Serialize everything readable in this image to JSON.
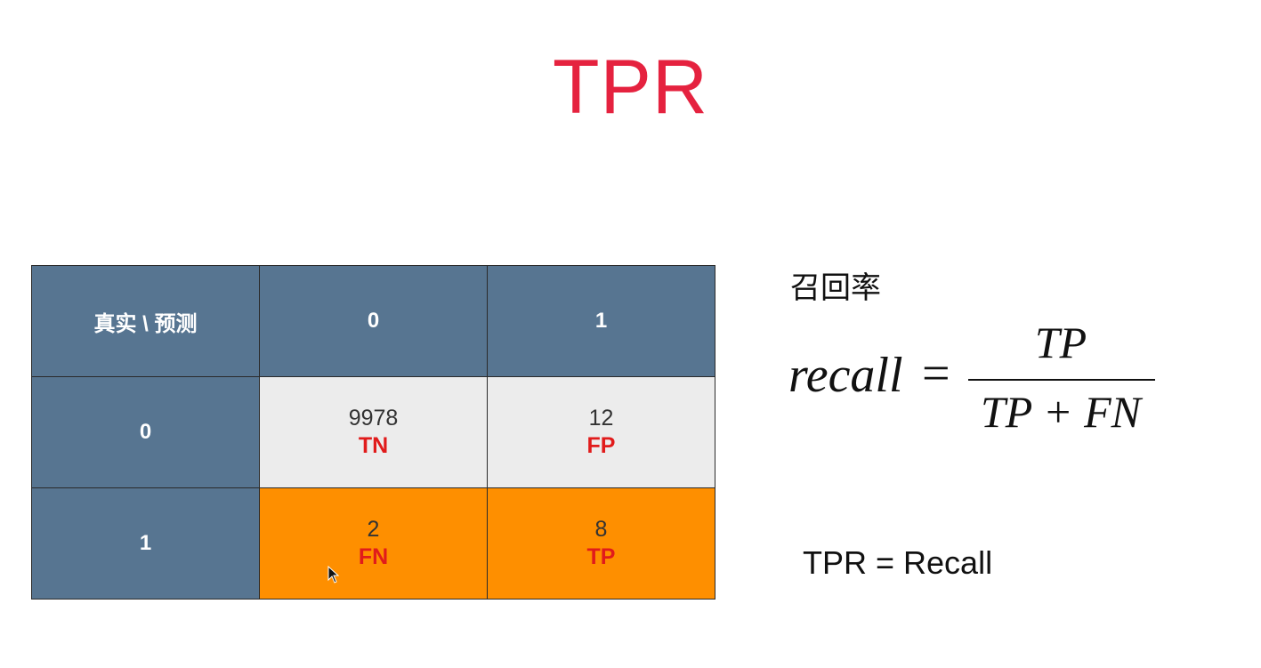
{
  "title": "TPR",
  "matrix": {
    "corner": "真实 \\ 预测",
    "col_headers": [
      "0",
      "1"
    ],
    "rows": [
      {
        "header": "0",
        "cells": [
          {
            "value": "9978",
            "label": "TN"
          },
          {
            "value": "12",
            "label": "FP"
          }
        ]
      },
      {
        "header": "1",
        "cells": [
          {
            "value": "2",
            "label": "FN"
          },
          {
            "value": "8",
            "label": "TP"
          }
        ]
      }
    ]
  },
  "recall_label": "召回率",
  "formula": {
    "lhs": "recall",
    "equals": "=",
    "numerator": "TP",
    "denominator": "TP + FN"
  },
  "tpr_equals_recall": "TPR = Recall",
  "colors": {
    "title": "#e5223f",
    "header_bg": "#577591",
    "negative_row_bg": "#ececec",
    "positive_row_bg": "#fe8f00",
    "cell_label": "#e11b1b"
  },
  "icons": [
    "mouse-pointer-icon"
  ]
}
